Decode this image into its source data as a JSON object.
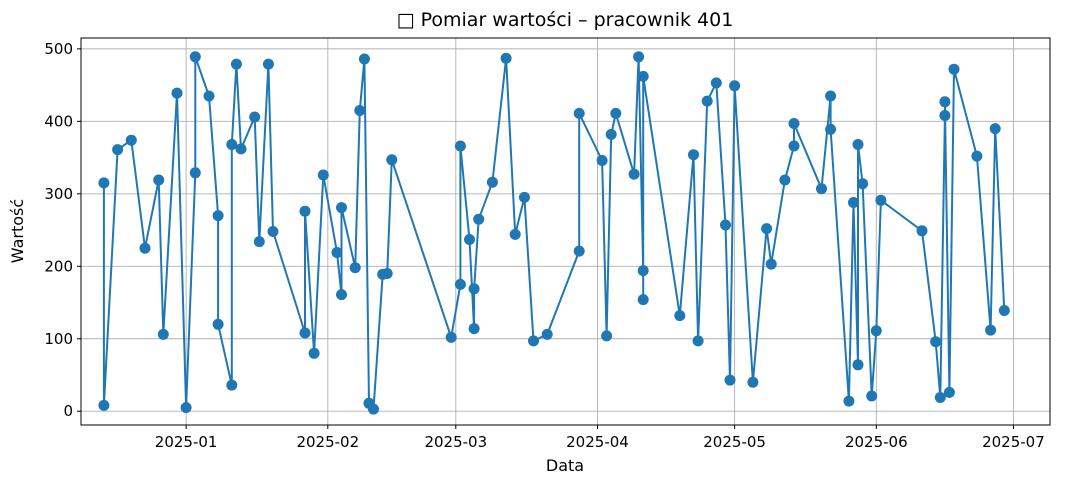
{
  "chart_data": {
    "type": "line",
    "title": "Pomiar wartości – pracownik 401",
    "title_icon": "emoji-placeholder-icon",
    "title_icon_glyph": "□",
    "xlabel": "Data",
    "ylabel": "Wartość",
    "x_ticks": [
      "2025-01",
      "2025-02",
      "2025-03",
      "2025-04",
      "2025-05",
      "2025-06",
      "2025-07"
    ],
    "y_ticks": [
      0,
      100,
      200,
      300,
      400,
      500
    ],
    "xlim": [
      "2024-12-09",
      "2025-07-09"
    ],
    "ylim": [
      -19,
      515
    ],
    "grid": true,
    "line_color": "#1f77b4",
    "marker": "circle",
    "series": [
      {
        "x": [
          "2024-12-14",
          "2024-12-14",
          "2024-12-17",
          "2024-12-20",
          "2024-12-23",
          "2024-12-26",
          "2024-12-27",
          "2024-12-30",
          "2025-01-01",
          "2025-01-03",
          "2025-01-03",
          "2025-01-06",
          "2025-01-08",
          "2025-01-08",
          "2025-01-11",
          "2025-01-11",
          "2025-01-12",
          "2025-01-13",
          "2025-01-16",
          "2025-01-17",
          "2025-01-19",
          "2025-01-20",
          "2025-01-27",
          "2025-01-27",
          "2025-01-29",
          "2025-01-31",
          "2025-02-03",
          "2025-02-04",
          "2025-02-04",
          "2025-02-07",
          "2025-02-08",
          "2025-02-09",
          "2025-02-10",
          "2025-02-11",
          "2025-02-13",
          "2025-02-14",
          "2025-02-15",
          "2025-02-28",
          "2025-03-02",
          "2025-03-02",
          "2025-03-04",
          "2025-03-05",
          "2025-03-05",
          "2025-03-06",
          "2025-03-09",
          "2025-03-12",
          "2025-03-14",
          "2025-03-16",
          "2025-03-18",
          "2025-03-21",
          "2025-03-28",
          "2025-03-28",
          "2025-04-02",
          "2025-04-03",
          "2025-04-04",
          "2025-04-05",
          "2025-04-09",
          "2025-04-10",
          "2025-04-11",
          "2025-04-11",
          "2025-04-11",
          "2025-04-19",
          "2025-04-22",
          "2025-04-23",
          "2025-04-25",
          "2025-04-27",
          "2025-04-29",
          "2025-04-30",
          "2025-05-01",
          "2025-05-05",
          "2025-05-08",
          "2025-05-09",
          "2025-05-12",
          "2025-05-14",
          "2025-05-14",
          "2025-05-20",
          "2025-05-22",
          "2025-05-22",
          "2025-05-26",
          "2025-05-27",
          "2025-05-28",
          "2025-05-28",
          "2025-05-29",
          "2025-05-31",
          "2025-06-01",
          "2025-06-02",
          "2025-06-11",
          "2025-06-14",
          "2025-06-15",
          "2025-06-16",
          "2025-06-16",
          "2025-06-17",
          "2025-06-18",
          "2025-06-23",
          "2025-06-26",
          "2025-06-27",
          "2025-06-29"
        ],
        "y": [
          315,
          8,
          361,
          374,
          225,
          319,
          106,
          439,
          5,
          329,
          489,
          435,
          270,
          120,
          36,
          368,
          479,
          362,
          406,
          234,
          479,
          248,
          108,
          276,
          80,
          326,
          219,
          161,
          281,
          198,
          415,
          486,
          11,
          3,
          189,
          190,
          347,
          102,
          175,
          366,
          237,
          114,
          169,
          265,
          316,
          487,
          244,
          295,
          97,
          106,
          221,
          411,
          346,
          104,
          382,
          411,
          327,
          489,
          194,
          154,
          462,
          132,
          354,
          97,
          428,
          453,
          257,
          43,
          449,
          40,
          252,
          203,
          319,
          366,
          397,
          307,
          435,
          389,
          14,
          288,
          64,
          368,
          314,
          21,
          111,
          291,
          249,
          96,
          19,
          408,
          427,
          26,
          472,
          352,
          112,
          390,
          139
        ]
      }
    ]
  }
}
